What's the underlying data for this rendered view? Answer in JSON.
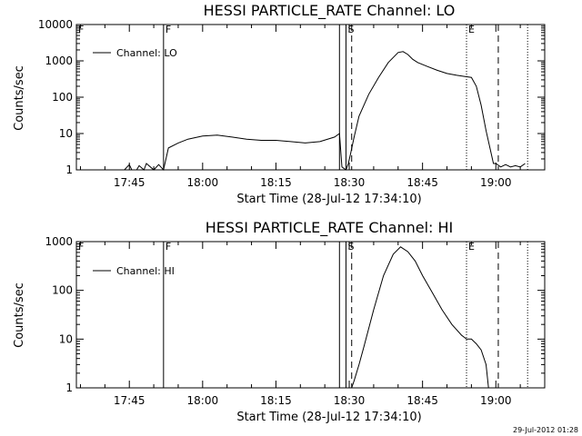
{
  "chart_data": [
    {
      "type": "line",
      "title": "HESSI PARTICLE_RATE Channel: LO",
      "xlabel": "Start Time (28-Jul-12 17:34:10)",
      "ylabel": "Counts/sec",
      "yscale": "log",
      "ylim": [
        1,
        10000
      ],
      "xlim": [
        "17:34:10",
        "19:10:00"
      ],
      "x_ticks": [
        "17:45",
        "18:00",
        "18:15",
        "18:30",
        "18:45",
        "19:00"
      ],
      "y_ticks": [
        "1",
        "10",
        "100",
        "1000",
        "10000"
      ],
      "legend": {
        "placement": "top-left",
        "entries": [
          "Channel: LO"
        ]
      },
      "markers": [
        {
          "label": "F",
          "time": "17:34:10",
          "style": "dotted"
        },
        {
          "label": "F",
          "time": "17:52:00",
          "style": "solid"
        },
        {
          "label": "",
          "time": "18:28:00",
          "style": "solid"
        },
        {
          "label": "S",
          "time": "18:29:20",
          "style": "solid"
        },
        {
          "label": "",
          "time": "18:30:30",
          "style": "dashed"
        },
        {
          "label": "E",
          "time": "18:54:00",
          "style": "dotted"
        },
        {
          "label": "",
          "time": "19:00:30",
          "style": "dashed"
        },
        {
          "label": "",
          "time": "19:06:30",
          "style": "dotted"
        }
      ],
      "series": [
        {
          "name": "Channel: LO",
          "x": [
            "17:44:00",
            "17:45:00",
            "17:45:30",
            "17:46:30",
            "17:47:00",
            "17:48:00",
            "17:48:30",
            "17:50:00",
            "17:51:00",
            "17:52:00",
            "17:53:00",
            "17:55:00",
            "17:57:00",
            "18:00:00",
            "18:03:00",
            "18:06:00",
            "18:09:00",
            "18:12:00",
            "18:15:00",
            "18:18:00",
            "18:21:00",
            "18:24:00",
            "18:27:00",
            "18:28:00",
            "18:28:30",
            "18:29:20",
            "18:29:50",
            "18:30:20",
            "18:31:00",
            "18:32:00",
            "18:34:00",
            "18:36:00",
            "18:38:00",
            "18:40:00",
            "18:41:00",
            "18:42:00",
            "18:43:00",
            "18:44:00",
            "18:46:00",
            "18:48:00",
            "18:50:00",
            "18:52:00",
            "18:55:00",
            "18:56:00",
            "18:57:00",
            "18:58:00",
            "18:59:00",
            "18:59:30",
            "19:00:00",
            "19:01:00",
            "19:02:00",
            "19:03:00",
            "19:04:00",
            "19:05:00",
            "19:06:00"
          ],
          "y": [
            1,
            1.4,
            1,
            1,
            1.3,
            1,
            1.5,
            1,
            1.4,
            1,
            4,
            5.5,
            7,
            8.5,
            9,
            8,
            7,
            6.5,
            6.5,
            6,
            5.5,
            6,
            8,
            10,
            1.2,
            1,
            1.5,
            3,
            8,
            30,
            120,
            350,
            900,
            1700,
            1800,
            1500,
            1100,
            900,
            700,
            550,
            450,
            400,
            350,
            200,
            60,
            12,
            3,
            1.5,
            1.5,
            1.2,
            1.4,
            1.2,
            1.3,
            1.2,
            1.5
          ]
        }
      ]
    },
    {
      "type": "line",
      "title": "HESSI PARTICLE_RATE Channel: HI",
      "xlabel": "Start Time (28-Jul-12 17:34:10)",
      "ylabel": "Counts/sec",
      "yscale": "log",
      "ylim": [
        1,
        1000
      ],
      "xlim": [
        "17:34:10",
        "19:10:00"
      ],
      "x_ticks": [
        "17:45",
        "18:00",
        "18:15",
        "18:30",
        "18:45",
        "19:00"
      ],
      "y_ticks": [
        "1",
        "10",
        "100",
        "1000"
      ],
      "legend": {
        "placement": "top-left",
        "entries": [
          "Channel: HI"
        ]
      },
      "markers": [
        {
          "label": "F",
          "time": "17:34:10",
          "style": "dotted"
        },
        {
          "label": "F",
          "time": "17:52:00",
          "style": "solid"
        },
        {
          "label": "",
          "time": "18:28:00",
          "style": "solid"
        },
        {
          "label": "S",
          "time": "18:29:20",
          "style": "solid"
        },
        {
          "label": "",
          "time": "18:30:30",
          "style": "dashed"
        },
        {
          "label": "E",
          "time": "18:54:00",
          "style": "dotted"
        },
        {
          "label": "",
          "time": "19:00:30",
          "style": "dashed"
        },
        {
          "label": "",
          "time": "19:06:30",
          "style": "dotted"
        }
      ],
      "series": [
        {
          "name": "Channel: HI",
          "x": [
            "18:30:30",
            "18:31:00",
            "18:32:00",
            "18:33:00",
            "18:35:00",
            "18:37:00",
            "18:39:00",
            "18:40:30",
            "18:42:00",
            "18:43:30",
            "18:45:00",
            "18:47:00",
            "18:49:00",
            "18:51:00",
            "18:53:00",
            "18:54:00",
            "18:55:00",
            "18:56:00",
            "18:57:00",
            "18:58:00",
            "18:58:30"
          ],
          "y": [
            1,
            1.4,
            3,
            7,
            40,
            200,
            550,
            780,
            620,
            400,
            200,
            90,
            40,
            20,
            12,
            10,
            10,
            8,
            6,
            3,
            1
          ]
        }
      ]
    }
  ],
  "timestamp": "29-Jul-2012 01:28"
}
